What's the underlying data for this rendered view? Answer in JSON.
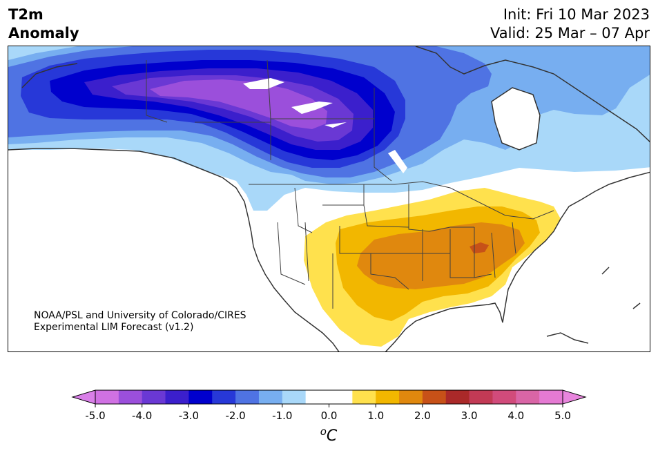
{
  "title": {
    "variable_line1": "T2m",
    "variable_line2": "Anomaly",
    "init": "Init: Fri 10 Mar 2023",
    "valid": "Valid: 25 Mar – 07 Apr"
  },
  "credit": {
    "line1": "NOAA/PSL and University of Colorado/CIRES",
    "line2": "Experimental LIM Forecast (v1.2)"
  },
  "colorbar": {
    "unit_base": "o",
    "unit_main": "C",
    "ticks": [
      "-5.0",
      "-4.0",
      "-3.0",
      "-2.0",
      "-1.0",
      "0.0",
      "1.0",
      "2.0",
      "3.0",
      "4.0",
      "5.0"
    ],
    "colors": [
      "#d071e3",
      "#9b4fdb",
      "#6a38d4",
      "#3b1fcc",
      "#0000cd",
      "#2738d8",
      "#4f73e3",
      "#77aef0",
      "#a9d8f9",
      "#ffffff",
      "#ffffff",
      "#ffe14d",
      "#f2b700",
      "#e0880e",
      "#c75118",
      "#aa2929",
      "#c23a55",
      "#d14b7b",
      "#d965a6",
      "#e57ad3"
    ],
    "under_color": "#d97fe8",
    "over_color": "#e885dd"
  },
  "map": {
    "region": "North America",
    "colors": {
      "ocean_land": "#ffffff",
      "coast": "#333333",
      "border": "#404040"
    }
  }
}
